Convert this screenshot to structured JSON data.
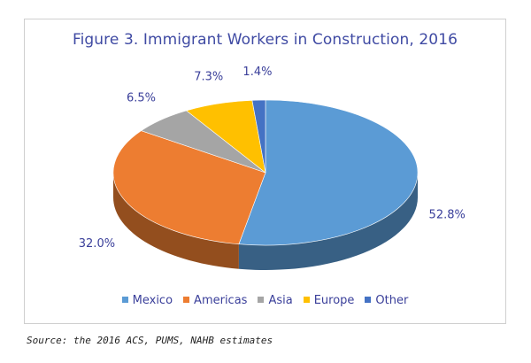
{
  "chart_data": {
    "type": "pie",
    "title": "Figure 3. Immigrant Workers in Construction, 2016",
    "slices": [
      {
        "label": "Mexico",
        "value": 52.8,
        "value_label": "52.8%",
        "color": "#5b9bd5"
      },
      {
        "label": "Americas",
        "value": 32.0,
        "value_label": "32.0%",
        "color": "#ed7d31"
      },
      {
        "label": "Asia",
        "value": 6.5,
        "value_label": "6.5%",
        "color": "#a5a5a5"
      },
      {
        "label": "Europe",
        "value": 7.3,
        "value_label": "7.3%",
        "color": "#ffc000"
      },
      {
        "label": "Other",
        "value": 1.4,
        "value_label": "1.4%",
        "color": "#4472c4"
      }
    ],
    "legend_position": "bottom",
    "style": "3d"
  },
  "source": "Source: the 2016 ACS, PUMS, NAHB estimates"
}
